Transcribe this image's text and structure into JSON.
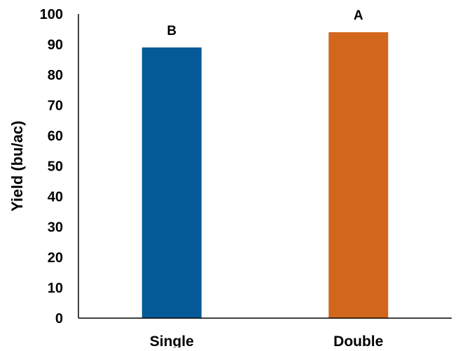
{
  "chart_data": {
    "type": "bar",
    "title": "",
    "xlabel": "",
    "ylabel": "Yield (bu/ac)",
    "ylim": [
      0,
      100
    ],
    "yticks": [
      "0",
      "10",
      "20",
      "30",
      "40",
      "50",
      "60",
      "70",
      "80",
      "90",
      "100"
    ],
    "categories": [
      "Single",
      "Double"
    ],
    "values": [
      89,
      94
    ],
    "significance_labels": [
      "B",
      "A"
    ],
    "bar_colors": [
      "#045a97",
      "#d2661d"
    ],
    "grid": false,
    "legend": "none"
  }
}
